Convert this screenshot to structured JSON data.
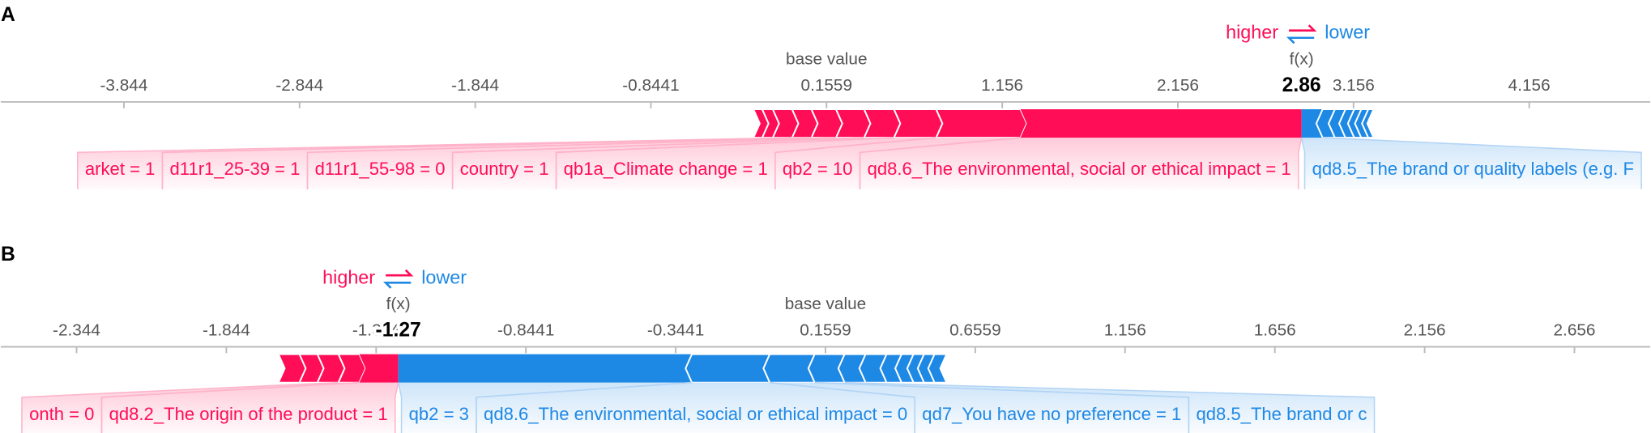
{
  "chart_data": [
    {
      "type": "force",
      "panel": "A",
      "higher_label": "higher",
      "lower_label": "lower",
      "base_value_label": "base value",
      "output_label": "f(x)",
      "base_value": 0.1559,
      "output_value": 2.86,
      "colors": {
        "higher": "#ff0d57",
        "lower": "#1e88e5"
      },
      "xlim": [
        -4.545,
        4.845
      ],
      "xticks": [
        -3.844,
        -2.844,
        -1.844,
        -0.8441,
        0.1559,
        1.156,
        2.156,
        3.156,
        4.156
      ],
      "positive": [
        {
          "label": null,
          "value": 0.05
        },
        {
          "label": null,
          "value": 0.06
        },
        {
          "label": null,
          "value": 0.11
        },
        {
          "label": "arket = 1",
          "value": 0.11
        },
        {
          "label": "d11r1_25-39 = 1",
          "value": 0.14
        },
        {
          "label": "d11r1_55-98 = 0",
          "value": 0.16
        },
        {
          "label": "country = 1",
          "value": 0.17
        },
        {
          "label": "qb1a_Climate change = 1",
          "value": 0.24
        },
        {
          "label": "qb2 = 10",
          "value": 0.48
        },
        {
          "label": "qd8.6_The environmental, social or ethical impact = 1",
          "value": 1.6
        }
      ],
      "negative": [
        {
          "label": "qd8.5_The brand or quality labels (e.g. F",
          "value": 0.12
        },
        {
          "label": null,
          "value": 0.07
        },
        {
          "label": null,
          "value": 0.06
        },
        {
          "label": null,
          "value": 0.05
        },
        {
          "label": null,
          "value": 0.04
        },
        {
          "label": null,
          "value": 0.04
        },
        {
          "label": null,
          "value": 0.03
        }
      ]
    },
    {
      "type": "force",
      "panel": "B",
      "higher_label": "higher",
      "lower_label": "lower",
      "base_value_label": "base value",
      "output_label": "f(x)",
      "base_value": 0.1559,
      "output_value": -1.27,
      "colors": {
        "higher": "#ff0d57",
        "lower": "#1e88e5"
      },
      "xlim": [
        -2.597,
        2.909
      ],
      "xticks": [
        -2.344,
        -1.844,
        -1.344,
        -0.8441,
        -0.3441,
        0.1559,
        0.6559,
        1.156,
        1.656,
        2.156,
        2.656
      ],
      "positive": [
        {
          "label": null,
          "value": 0.07
        },
        {
          "label": null,
          "value": 0.06
        },
        {
          "label": null,
          "value": 0.07
        },
        {
          "label": "onth = 0",
          "value": 0.07
        },
        {
          "label": "qd8.2_The origin of the product = 1",
          "value": 0.13
        }
      ],
      "negative": [
        {
          "label": "qb2 = 3",
          "value": 0.98
        },
        {
          "label": "qd8.6_The environmental, social or ethical impact = 0",
          "value": 0.26
        },
        {
          "label": "qd7_You have no preference = 1",
          "value": 0.15
        },
        {
          "label": "qd8.5_The brand or c",
          "value": 0.1
        },
        {
          "label": null,
          "value": 0.07
        },
        {
          "label": null,
          "value": 0.07
        },
        {
          "label": null,
          "value": 0.05
        },
        {
          "label": null,
          "value": 0.04
        },
        {
          "label": null,
          "value": 0.035
        },
        {
          "label": null,
          "value": 0.035
        },
        {
          "label": null,
          "value": 0.04
        }
      ]
    }
  ]
}
